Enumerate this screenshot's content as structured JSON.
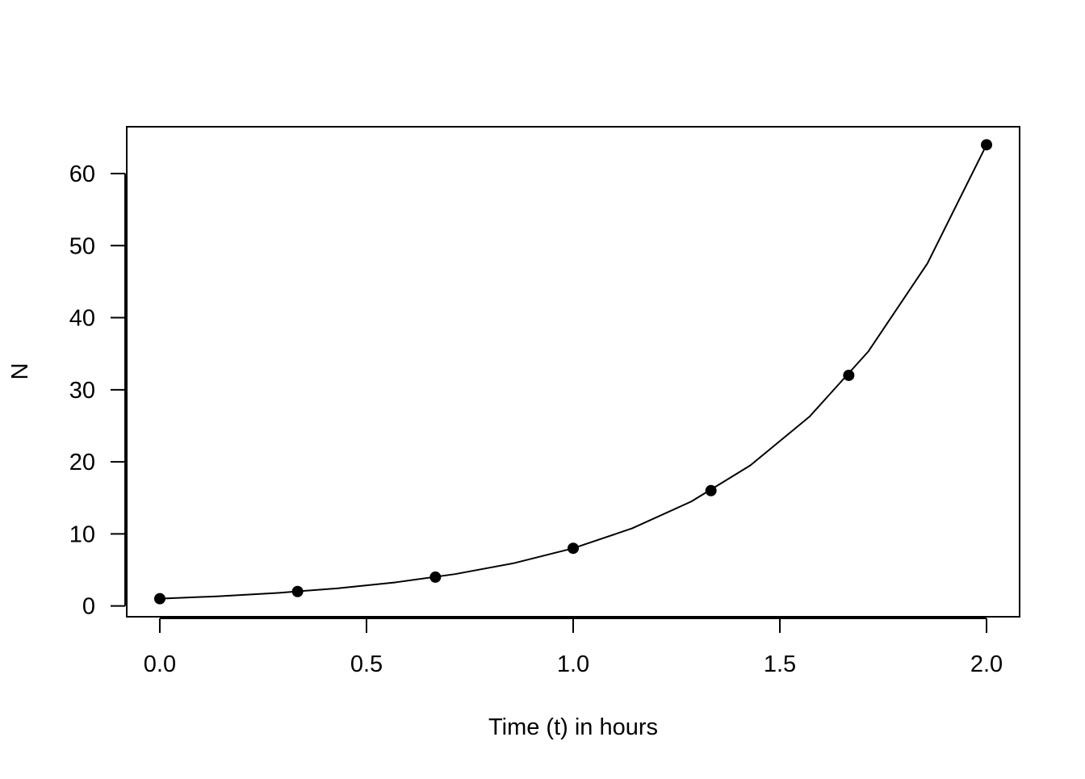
{
  "chart_data": {
    "type": "line",
    "title": "",
    "xlabel": "Time (t) in hours",
    "ylabel": "N",
    "xlim": [
      -0.08,
      2.08
    ],
    "ylim": [
      -1.5,
      66.5
    ],
    "x_ticks": [
      0.0,
      0.5,
      1.0,
      1.5,
      2.0
    ],
    "x_tick_labels": [
      "0.0",
      "0.5",
      "1.0",
      "1.5",
      "2.0"
    ],
    "y_ticks": [
      0,
      10,
      20,
      30,
      40,
      50,
      60
    ],
    "y_tick_labels": [
      "0",
      "10",
      "20",
      "30",
      "40",
      "50",
      "60"
    ],
    "grid": false,
    "legend": "none",
    "line_color": "#000000",
    "series": [
      {
        "style": "line",
        "x": [
          0.0,
          0.142857,
          0.285714,
          0.428571,
          0.571429,
          0.714286,
          0.857143,
          1.0,
          1.142857,
          1.285714,
          1.428571,
          1.571429,
          1.714286,
          1.857143,
          2.0
        ],
        "y": [
          1.0,
          1.346,
          1.811,
          2.438,
          3.281,
          4.416,
          5.944,
          8.0,
          10.77,
          14.49,
          19.5,
          26.25,
          35.33,
          47.55,
          64.0
        ]
      },
      {
        "style": "points",
        "x": [
          0.0,
          0.3333,
          0.6667,
          1.0,
          1.3333,
          1.6667,
          2.0
        ],
        "y": [
          1,
          2,
          4,
          8,
          16,
          32,
          64
        ]
      }
    ]
  }
}
